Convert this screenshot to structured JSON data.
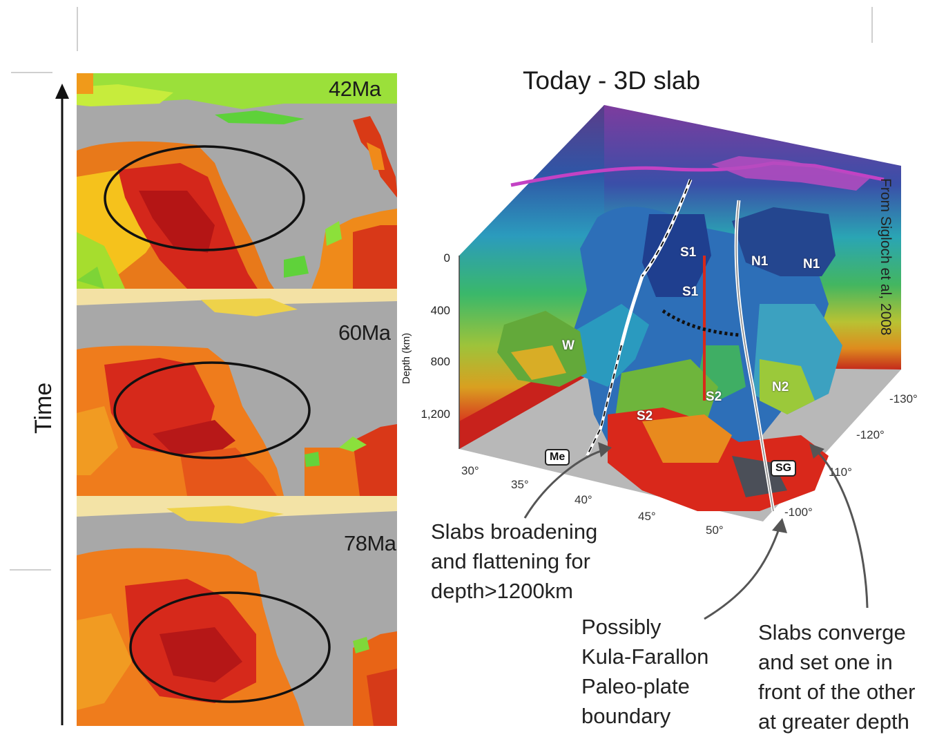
{
  "time_panels": [
    {
      "label": "42Ma"
    },
    {
      "label": "60Ma"
    },
    {
      "label": "78Ma"
    }
  ],
  "time_axis": {
    "label": "Time"
  },
  "slab_view": {
    "title": "Today - 3D slab",
    "credit": "From Sigloch et al, 2008",
    "depth_axis_label": "Depth (km)",
    "depth_ticks": [
      "0",
      "400",
      "800",
      "1,200"
    ],
    "lat_ticks": [
      "30°",
      "35°",
      "40°",
      "45°",
      "50°"
    ],
    "lon_ticks": [
      "-130°",
      "-120°",
      "110°",
      "-100°"
    ],
    "slab_labels": [
      "S1",
      "S1",
      "N1",
      "N1",
      "W",
      "S2",
      "S2",
      "N2"
    ],
    "boxed_labels": [
      "Me",
      "SG"
    ]
  },
  "annotations": {
    "broadening": "Slabs broadening\nand flattening for\ndepth>1200km",
    "kula": "Possibly\nKula-Farallon\nPaleo-plate\nboundary",
    "converge": "Slabs converge\nand set one in\nfront of the other\nat greater depth"
  },
  "colors": {
    "ocean_gray": "#a9a9a9",
    "hot": "#d61e0c",
    "warm": "#f07a18",
    "cool": "#7fd82a"
  }
}
